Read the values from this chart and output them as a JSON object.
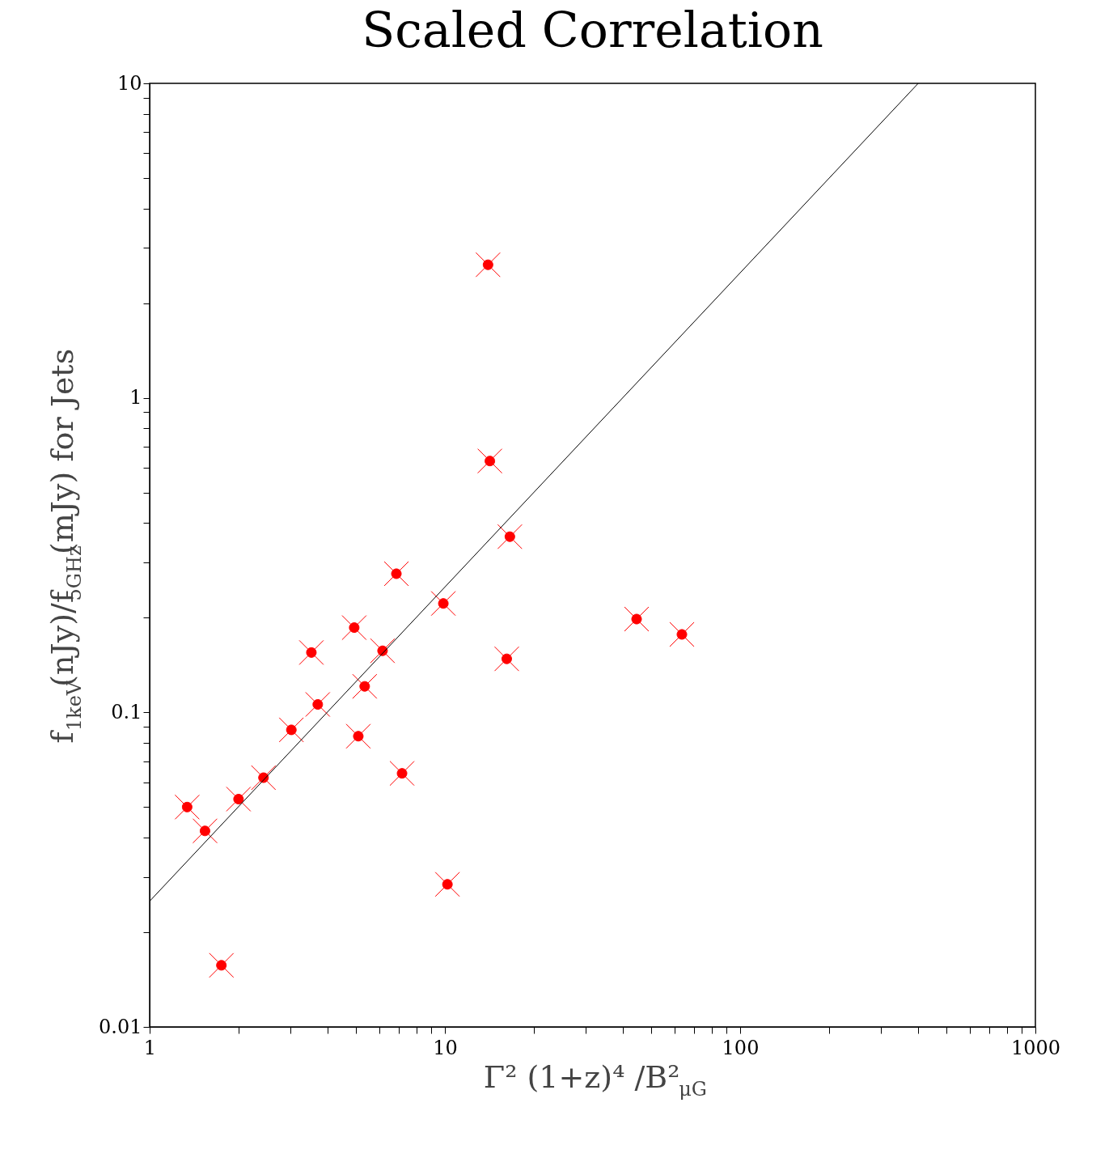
{
  "chart_data": {
    "type": "scatter",
    "title": "Scaled Correlation",
    "xlabel": "Γ² (1+z)⁴ /B²$_{μG}$",
    "ylabel": "f$_{1keV}$(nJy)/f$_{5GHz}$(mJy) for Jets",
    "log": "xy",
    "grid": false,
    "marker": "circle",
    "xlim": [
      1,
      1000
    ],
    "ylim": [
      0.01,
      10
    ],
    "xticks": [
      1,
      {
        "value": 2,
        "label": null
      },
      {
        "value": 3,
        "label": null
      },
      {
        "value": 4,
        "label": null
      },
      {
        "value": 5,
        "label": null
      },
      {
        "value": 6,
        "label": null
      },
      {
        "value": 7,
        "label": null
      },
      {
        "value": 8,
        "label": null
      },
      {
        "value": 9,
        "label": null
      },
      10,
      {
        "value": 20,
        "label": null
      },
      {
        "value": 30,
        "label": null
      },
      {
        "value": 40,
        "label": null
      },
      {
        "value": 50,
        "label": null
      },
      {
        "value": 60,
        "label": null
      },
      {
        "value": 70,
        "label": null
      },
      {
        "value": 80,
        "label": null
      },
      {
        "value": 90,
        "label": null
      },
      100,
      {
        "value": 200,
        "label": null
      },
      {
        "value": 300,
        "label": null
      },
      {
        "value": 400,
        "label": null
      },
      {
        "value": 500,
        "label": null
      },
      {
        "value": 600,
        "label": null
      },
      {
        "value": 700,
        "label": null
      },
      {
        "value": 800,
        "label": null
      },
      {
        "value": 900,
        "label": null
      },
      1000
    ],
    "yticks": [
      0.01,
      {
        "value": 0.02,
        "label": null
      },
      {
        "value": 0.03,
        "label": null
      },
      {
        "value": 0.04,
        "label": null
      },
      {
        "value": 0.05,
        "label": null
      },
      {
        "value": 0.06,
        "label": null
      },
      {
        "value": 0.07,
        "label": null
      },
      {
        "value": 0.08,
        "label": null
      },
      {
        "value": 0.09,
        "label": null
      },
      0.1,
      {
        "value": 0.2,
        "label": null
      },
      {
        "value": 0.3,
        "label": null
      },
      {
        "value": 0.4,
        "label": null
      },
      {
        "value": 0.5,
        "label": null
      },
      {
        "value": 0.6,
        "label": null
      },
      {
        "value": 0.7,
        "label": null
      },
      {
        "value": 0.8,
        "label": null
      },
      {
        "value": 0.9,
        "label": null
      },
      1,
      {
        "value": 2,
        "label": null
      },
      {
        "value": 3,
        "label": null
      },
      {
        "value": 4,
        "label": null
      },
      {
        "value": 5,
        "label": null
      },
      {
        "value": 6,
        "label": null
      },
      {
        "value": 7,
        "label": null
      },
      {
        "value": 8,
        "label": null
      },
      {
        "value": 9,
        "label": null
      },
      10
    ],
    "series": [
      {
        "color": "#ff0000",
        "x": [
          1.34,
          1.54,
          1.75,
          2.0,
          2.43,
          3.02,
          3.53,
          3.71,
          4.93,
          5.09,
          5.35,
          6.15,
          6.85,
          7.16,
          9.88,
          10.2,
          14.0,
          14.2,
          16.2,
          16.6,
          44.6,
          63.5
        ],
        "values": [
          0.05,
          0.042,
          0.0157,
          0.053,
          0.062,
          0.088,
          0.155,
          0.106,
          0.186,
          0.084,
          0.121,
          0.157,
          0.276,
          0.064,
          0.222,
          0.0284,
          2.65,
          0.63,
          0.148,
          0.362,
          0.198,
          0.177
        ]
      },
      {
        "type": "line",
        "color": "#000000",
        "marker": "none",
        "x": [
          1,
          401
        ],
        "values": [
          0.0251,
          10
        ]
      }
    ]
  }
}
